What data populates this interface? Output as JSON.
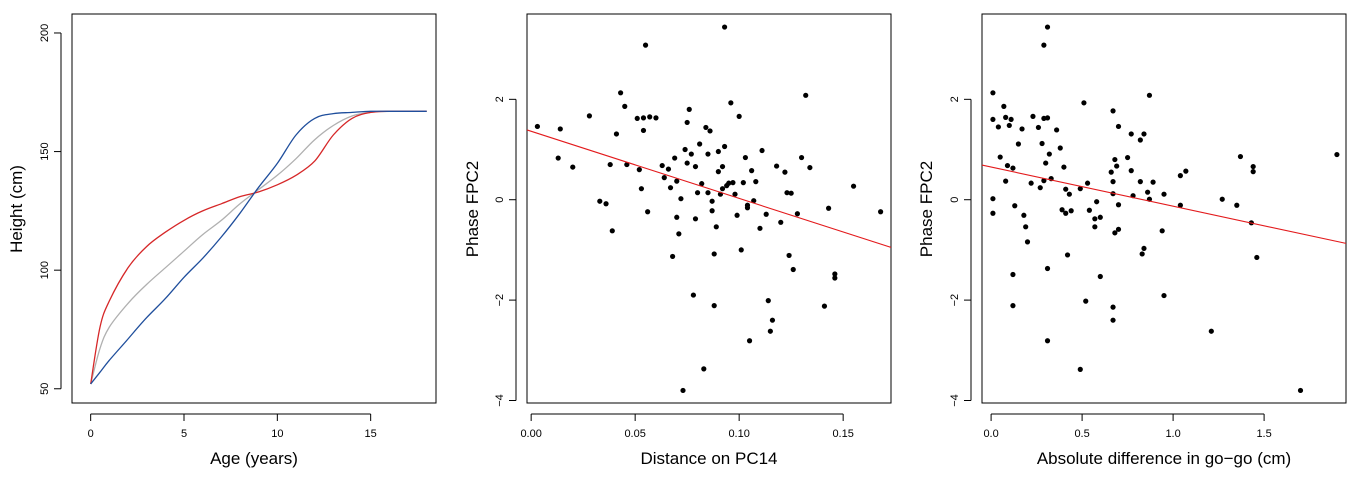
{
  "chart_data": [
    {
      "type": "line",
      "xlabel": "Age (years)",
      "ylabel": "Height (cm)",
      "xlim": [
        -1,
        18.5
      ],
      "ylim": [
        44,
        208
      ],
      "xticks": [
        0,
        5,
        10,
        15
      ],
      "yticks": [
        50,
        100,
        150,
        200
      ],
      "series": [
        {
          "color": "#b0b0b0",
          "x": [
            0,
            0.5,
            1,
            2,
            3,
            4,
            5,
            6,
            7,
            8,
            9,
            10,
            11,
            12,
            13,
            14,
            15,
            16,
            17,
            18
          ],
          "values": [
            52,
            67,
            76,
            86,
            94,
            101,
            108,
            115,
            121,
            128,
            134,
            140,
            147,
            155,
            161,
            165,
            166.5,
            167,
            167,
            167
          ]
        },
        {
          "color": "#d62728",
          "x": [
            0,
            0.5,
            1,
            2,
            3,
            4,
            5,
            6,
            7,
            8,
            9,
            10,
            11,
            12,
            13,
            14,
            15,
            16,
            17,
            18
          ],
          "values": [
            52,
            76,
            87,
            101,
            110,
            116,
            121,
            125,
            128,
            131,
            133,
            136,
            140,
            146,
            157,
            164,
            166.5,
            167,
            167,
            167
          ]
        },
        {
          "color": "#1f4e9c",
          "x": [
            0,
            0.5,
            1,
            2,
            3,
            4,
            5,
            6,
            7,
            8,
            9,
            10,
            11,
            12,
            13,
            14,
            15,
            16,
            17,
            18
          ],
          "values": [
            52,
            57,
            62,
            71,
            80,
            88,
            97,
            105,
            114,
            124,
            135,
            145,
            157,
            164,
            166,
            166.5,
            167,
            167,
            167,
            167
          ]
        }
      ]
    },
    {
      "type": "scatter",
      "xlabel": "Distance on PC14",
      "ylabel": "Phase FPC2",
      "xlim": [
        -0.002,
        0.173
      ],
      "ylim": [
        -4.05,
        3.7
      ],
      "xticks": [
        "0.00",
        "0.05",
        "0.10",
        "0.15"
      ],
      "yticks": [
        "−4",
        "−2",
        "0",
        "2"
      ],
      "regression_line": {
        "color": "#e31a1c",
        "x": [
          -0.002,
          0.173
        ],
        "y": [
          1.39,
          -0.95
        ]
      },
      "points": [
        [
          0.003,
          1.46
        ],
        [
          0.013,
          0.83
        ],
        [
          0.014,
          1.41
        ],
        [
          0.02,
          0.65
        ],
        [
          0.028,
          1.67
        ],
        [
          0.033,
          -0.03
        ],
        [
          0.036,
          -0.08
        ],
        [
          0.038,
          0.7
        ],
        [
          0.039,
          -0.62
        ],
        [
          0.041,
          1.31
        ],
        [
          0.043,
          2.13
        ],
        [
          0.045,
          1.86
        ],
        [
          0.046,
          0.7
        ],
        [
          0.051,
          1.62
        ],
        [
          0.052,
          0.6
        ],
        [
          0.053,
          0.22
        ],
        [
          0.054,
          1.38
        ],
        [
          0.054,
          1.63
        ],
        [
          0.055,
          3.08
        ],
        [
          0.056,
          -0.24
        ],
        [
          0.057,
          1.65
        ],
        [
          0.06,
          1.63
        ],
        [
          0.063,
          0.68
        ],
        [
          0.064,
          0.44
        ],
        [
          0.066,
          0.61
        ],
        [
          0.067,
          0.24
        ],
        [
          0.068,
          -1.13
        ],
        [
          0.069,
          0.83
        ],
        [
          0.07,
          0.37
        ],
        [
          0.07,
          -0.35
        ],
        [
          0.071,
          -0.68
        ],
        [
          0.072,
          0.02
        ],
        [
          0.073,
          -3.8
        ],
        [
          0.074,
          1.0
        ],
        [
          0.075,
          1.54
        ],
        [
          0.075,
          0.73
        ],
        [
          0.076,
          1.8
        ],
        [
          0.077,
          0.91
        ],
        [
          0.078,
          -1.9
        ],
        [
          0.079,
          0.66
        ],
        [
          0.079,
          -0.38
        ],
        [
          0.08,
          0.14
        ],
        [
          0.081,
          1.11
        ],
        [
          0.082,
          0.32
        ],
        [
          0.083,
          -3.37
        ],
        [
          0.084,
          1.44
        ],
        [
          0.085,
          0.91
        ],
        [
          0.085,
          0.14
        ],
        [
          0.086,
          1.37
        ],
        [
          0.087,
          -0.03
        ],
        [
          0.087,
          -0.22
        ],
        [
          0.088,
          -2.11
        ],
        [
          0.088,
          -1.08
        ],
        [
          0.089,
          -0.54
        ],
        [
          0.09,
          0.96
        ],
        [
          0.09,
          0.56
        ],
        [
          0.091,
          0.11
        ],
        [
          0.092,
          0.66
        ],
        [
          0.092,
          0.22
        ],
        [
          0.093,
          3.44
        ],
        [
          0.093,
          1.06
        ],
        [
          0.094,
          0.28
        ],
        [
          0.095,
          0.33
        ],
        [
          0.096,
          1.93
        ],
        [
          0.097,
          0.34
        ],
        [
          0.098,
          0.11
        ],
        [
          0.099,
          -0.31
        ],
        [
          0.1,
          1.66
        ],
        [
          0.101,
          -1.0
        ],
        [
          0.102,
          0.34
        ],
        [
          0.103,
          0.84
        ],
        [
          0.104,
          -0.11
        ],
        [
          0.104,
          -0.16
        ],
        [
          0.105,
          -2.81
        ],
        [
          0.106,
          0.58
        ],
        [
          0.107,
          -0.02
        ],
        [
          0.108,
          0.36
        ],
        [
          0.11,
          -0.57
        ],
        [
          0.111,
          0.98
        ],
        [
          0.113,
          -0.29
        ],
        [
          0.114,
          -2.01
        ],
        [
          0.115,
          -2.62
        ],
        [
          0.116,
          -2.4
        ],
        [
          0.118,
          0.67
        ],
        [
          0.12,
          -0.45
        ],
        [
          0.122,
          0.55
        ],
        [
          0.123,
          0.14
        ],
        [
          0.124,
          -1.11
        ],
        [
          0.125,
          0.13
        ],
        [
          0.126,
          -1.39
        ],
        [
          0.128,
          -0.28
        ],
        [
          0.13,
          0.84
        ],
        [
          0.132,
          2.08
        ],
        [
          0.134,
          0.64
        ],
        [
          0.141,
          -2.12
        ],
        [
          0.143,
          -0.17
        ],
        [
          0.146,
          -1.56
        ],
        [
          0.146,
          -1.48
        ],
        [
          0.155,
          0.27
        ],
        [
          0.168,
          -0.24
        ]
      ]
    },
    {
      "type": "scatter",
      "xlabel": "Absolute difference in go−go (cm)",
      "ylabel": "Phase FPC2",
      "xlim": [
        -0.05,
        1.95
      ],
      "ylim": [
        -4.05,
        3.7
      ],
      "xticks": [
        "0.0",
        "0.5",
        "1.0",
        "1.5"
      ],
      "yticks": [
        "−4",
        "−2",
        "0",
        "2"
      ],
      "regression_line": {
        "color": "#e31a1c",
        "x": [
          -0.05,
          1.95
        ],
        "y": [
          0.69,
          -0.87
        ]
      },
      "points": [
        [
          0.01,
          2.13
        ],
        [
          0.01,
          1.6
        ],
        [
          0.01,
          0.02
        ],
        [
          0.01,
          -0.27
        ],
        [
          0.04,
          1.45
        ],
        [
          0.05,
          0.85
        ],
        [
          0.07,
          1.86
        ],
        [
          0.08,
          1.64
        ],
        [
          0.08,
          0.37
        ],
        [
          0.09,
          0.68
        ],
        [
          0.1,
          1.48
        ],
        [
          0.11,
          1.6
        ],
        [
          0.12,
          0.63
        ],
        [
          0.12,
          -1.49
        ],
        [
          0.12,
          -2.11
        ],
        [
          0.13,
          -0.12
        ],
        [
          0.15,
          1.11
        ],
        [
          0.17,
          1.41
        ],
        [
          0.18,
          -0.31
        ],
        [
          0.19,
          -0.54
        ],
        [
          0.2,
          -0.84
        ],
        [
          0.22,
          0.33
        ],
        [
          0.23,
          1.66
        ],
        [
          0.26,
          1.44
        ],
        [
          0.27,
          0.24
        ],
        [
          0.28,
          1.12
        ],
        [
          0.29,
          0.38
        ],
        [
          0.29,
          3.08
        ],
        [
          0.29,
          1.62
        ],
        [
          0.3,
          0.73
        ],
        [
          0.31,
          3.44
        ],
        [
          0.31,
          1.63
        ],
        [
          0.31,
          -1.37
        ],
        [
          0.31,
          -2.81
        ],
        [
          0.32,
          0.91
        ],
        [
          0.33,
          0.42
        ],
        [
          0.36,
          1.39
        ],
        [
          0.38,
          1.03
        ],
        [
          0.39,
          -0.2
        ],
        [
          0.4,
          0.65
        ],
        [
          0.41,
          0.21
        ],
        [
          0.41,
          -0.27
        ],
        [
          0.42,
          -1.1
        ],
        [
          0.43,
          0.11
        ],
        [
          0.44,
          -0.22
        ],
        [
          0.49,
          0.22
        ],
        [
          0.49,
          -3.38
        ],
        [
          0.51,
          1.93
        ],
        [
          0.52,
          -2.02
        ],
        [
          0.53,
          0.33
        ],
        [
          0.54,
          -0.21
        ],
        [
          0.57,
          -0.38
        ],
        [
          0.57,
          -0.54
        ],
        [
          0.58,
          -0.04
        ],
        [
          0.6,
          -1.53
        ],
        [
          0.6,
          -0.35
        ],
        [
          0.66,
          0.55
        ],
        [
          0.67,
          1.77
        ],
        [
          0.67,
          0.36
        ],
        [
          0.67,
          0.12
        ],
        [
          0.67,
          -2.14
        ],
        [
          0.67,
          -2.4
        ],
        [
          0.68,
          -0.66
        ],
        [
          0.68,
          0.8
        ],
        [
          0.69,
          0.67
        ],
        [
          0.7,
          1.46
        ],
        [
          0.7,
          -0.59
        ],
        [
          0.7,
          -0.1
        ],
        [
          0.75,
          0.84
        ],
        [
          0.77,
          1.31
        ],
        [
          0.77,
          0.58
        ],
        [
          0.78,
          0.08
        ],
        [
          0.82,
          0.36
        ],
        [
          0.82,
          1.19
        ],
        [
          0.83,
          -1.08
        ],
        [
          0.84,
          -0.97
        ],
        [
          0.84,
          1.31
        ],
        [
          0.86,
          0.15
        ],
        [
          0.87,
          2.08
        ],
        [
          0.87,
          0.01
        ],
        [
          0.89,
          0.35
        ],
        [
          0.94,
          -0.62
        ],
        [
          0.95,
          -1.91
        ],
        [
          0.95,
          0.11
        ],
        [
          1.04,
          -0.11
        ],
        [
          1.04,
          0.48
        ],
        [
          1.07,
          0.57
        ],
        [
          1.21,
          -2.62
        ],
        [
          1.27,
          0.01
        ],
        [
          1.35,
          -0.11
        ],
        [
          1.37,
          0.86
        ],
        [
          1.43,
          -0.46
        ],
        [
          1.44,
          0.56
        ],
        [
          1.44,
          0.66
        ],
        [
          1.46,
          -1.15
        ],
        [
          1.7,
          -3.8
        ],
        [
          1.9,
          0.9
        ]
      ]
    }
  ]
}
